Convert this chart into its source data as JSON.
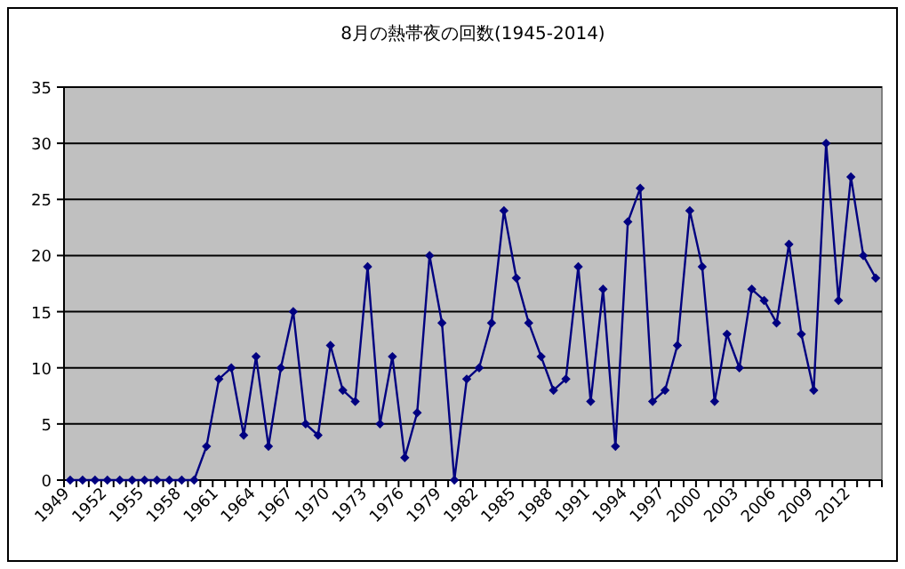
{
  "chart_data": {
    "type": "line",
    "title": "8月の熱帯夜の回数(1945-2014)",
    "categories": [
      "1949",
      null,
      null,
      "1952",
      null,
      null,
      "1955",
      null,
      null,
      "1958",
      null,
      null,
      "1961",
      null,
      null,
      "1964",
      null,
      null,
      "1967",
      null,
      null,
      "1970",
      null,
      null,
      "1973",
      null,
      null,
      "1976",
      null,
      null,
      "1979",
      null,
      null,
      "1982",
      null,
      null,
      "1985",
      null,
      null,
      "1988",
      null,
      null,
      "1991",
      null,
      null,
      "1994",
      null,
      null,
      "1997",
      null,
      null,
      "2000",
      null,
      null,
      "2003",
      null,
      null,
      "2006",
      null,
      null,
      "2009",
      null,
      null,
      "2012",
      null,
      null
    ],
    "values": [
      0,
      0,
      0,
      0,
      0,
      0,
      0,
      0,
      0,
      0,
      0,
      3,
      9,
      10,
      4,
      11,
      3,
      10,
      15,
      5,
      4,
      12,
      8,
      7,
      19,
      5,
      11,
      2,
      6,
      20,
      14,
      0,
      9,
      10,
      14,
      24,
      18,
      14,
      11,
      8,
      9,
      19,
      7,
      17,
      3,
      23,
      26,
      7,
      8,
      12,
      24,
      19,
      7,
      13,
      10,
      17,
      16,
      14,
      21,
      13,
      8,
      30,
      16,
      27,
      20,
      18
    ],
    "color": "#000080",
    "ylim": [
      0,
      35
    ],
    "yticks": [
      0,
      5,
      10,
      15,
      20,
      25,
      30,
      35
    ],
    "grid": "y",
    "marker": "diamond",
    "line_style": "solid"
  }
}
